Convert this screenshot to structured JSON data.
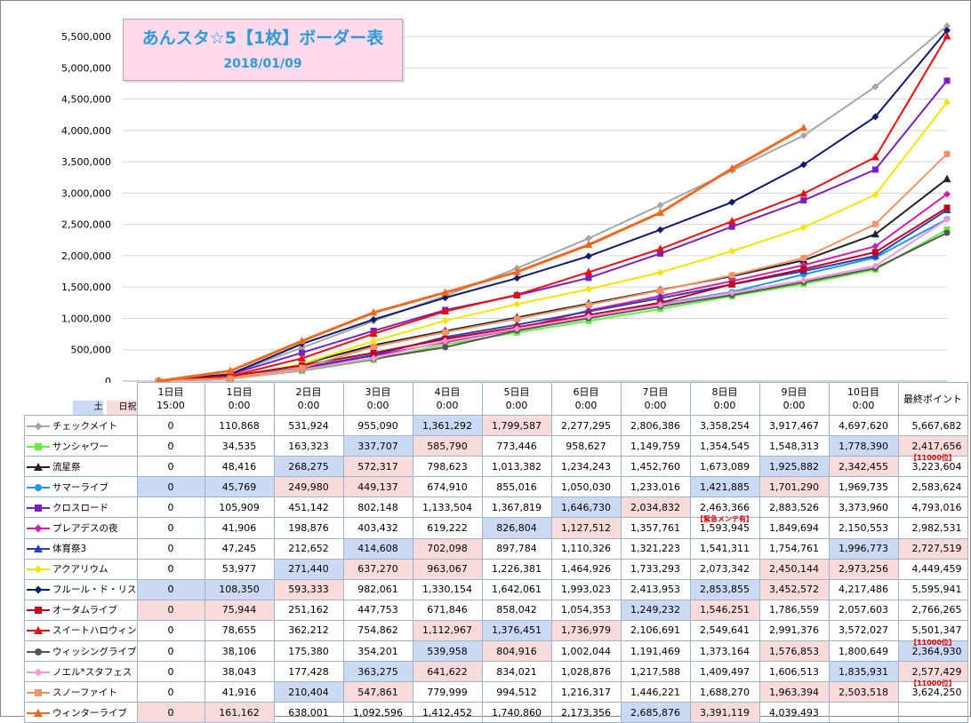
{
  "title": "あんスタ☆5【1枚】ボーダー表",
  "date": "2018/01/09",
  "legend_weekend": {
    "sat": "土",
    "holiday": "日祝",
    "sat_color": "#ccd9f5",
    "holiday_color": "#fadbdb"
  },
  "columns": [
    {
      "l1": "1日目",
      "l2": "15:00"
    },
    {
      "l1": "1日目",
      "l2": "0:00"
    },
    {
      "l1": "2日目",
      "l2": "0:00"
    },
    {
      "l1": "3日目",
      "l2": "0:00"
    },
    {
      "l1": "4日目",
      "l2": "0:00"
    },
    {
      "l1": "5日目",
      "l2": "0:00"
    },
    {
      "l1": "6日目",
      "l2": "0:00"
    },
    {
      "l1": "7日目",
      "l2": "0:00"
    },
    {
      "l1": "8日目",
      "l2": "0:00"
    },
    {
      "l1": "9日目",
      "l2": "0:00"
    },
    {
      "l1": "10日目",
      "l2": "0:00"
    },
    {
      "l1": "最終ポイント",
      "l2": ""
    }
  ],
  "notes": {
    "r1c11": "【11000位】",
    "r4c8": "【緊急メンテ有】",
    "r10c11": "【11000位】",
    "r12c11": "【11000位】"
  },
  "rows": [
    {
      "name": "チェックメイト",
      "color": "#a6a6a6",
      "marker": "diamond",
      "vals": [
        0,
        110868,
        531924,
        955090,
        1361292,
        1799587,
        2277295,
        2806386,
        3358254,
        3917467,
        4697620,
        5667682
      ],
      "cells": [
        "0",
        "110,868",
        "531,924",
        "955,090",
        "1,361,292",
        "1,799,587",
        "2,277,295",
        "2,806,386",
        "3,358,254",
        "3,917,467",
        "4,697,620",
        "5,667,682"
      ],
      "hl": [
        "",
        "",
        "",
        "",
        "b",
        "p",
        "",
        "",
        "",
        "",
        "",
        ""
      ]
    },
    {
      "name": "サンシャワー",
      "color": "#66ee44",
      "marker": "square",
      "vals": [
        0,
        34535,
        163323,
        337707,
        585790,
        773446,
        958627,
        1149759,
        1354545,
        1548313,
        1778390,
        2417656
      ],
      "cells": [
        "0",
        "34,535",
        "163,323",
        "337,707",
        "585,790",
        "773,446",
        "958,627",
        "1,149,759",
        "1,354,545",
        "1,548,313",
        "1,778,390",
        "2,417,656"
      ],
      "hl": [
        "",
        "",
        "",
        "b",
        "p",
        "",
        "",
        "",
        "",
        "",
        "b",
        "p"
      ]
    },
    {
      "name": "流星祭",
      "color": "#222222",
      "marker": "triangle",
      "vals": [
        0,
        48416,
        268275,
        572317,
        798623,
        1013382,
        1234243,
        1452760,
        1673089,
        1925882,
        2342455,
        3223604
      ],
      "cells": [
        "0",
        "48,416",
        "268,275",
        "572,317",
        "798,623",
        "1,013,382",
        "1,234,243",
        "1,452,760",
        "1,673,089",
        "1,925,882",
        "2,342,455",
        "3,223,604"
      ],
      "hl": [
        "",
        "",
        "b",
        "p",
        "",
        "",
        "",
        "",
        "",
        "b",
        "p",
        ""
      ]
    },
    {
      "name": "サマーライブ",
      "color": "#1f9ae0",
      "marker": "circle",
      "vals": [
        0,
        45769,
        249980,
        449137,
        674910,
        855016,
        1050030,
        1233016,
        1421885,
        1701290,
        1969735,
        2583624
      ],
      "cells": [
        "0",
        "45,769",
        "249,980",
        "449,137",
        "674,910",
        "855,016",
        "1,050,030",
        "1,233,016",
        "1,421,885",
        "1,701,290",
        "1,969,735",
        "2,583,624"
      ],
      "hl": [
        "b",
        "b",
        "p",
        "p",
        "",
        "",
        "",
        "",
        "b",
        "p",
        "",
        ""
      ]
    },
    {
      "name": "クロスロード",
      "color": "#7a1fc2",
      "marker": "square",
      "vals": [
        0,
        105909,
        451142,
        802148,
        1133504,
        1367819,
        1646730,
        2034832,
        2463366,
        2883526,
        3373960,
        4793016
      ],
      "cells": [
        "0",
        "105,909",
        "451,142",
        "802,148",
        "1,133,504",
        "1,367,819",
        "1,646,730",
        "2,034,832",
        "2,463,366",
        "2,883,526",
        "3,373,960",
        "4,793,016"
      ],
      "hl": [
        "",
        "",
        "",
        "",
        "",
        "",
        "b",
        "p",
        "",
        "",
        "",
        ""
      ]
    },
    {
      "name": "プレアデスの夜",
      "color": "#d61fa8",
      "marker": "diamond",
      "vals": [
        0,
        41906,
        198876,
        403432,
        619222,
        826804,
        1127512,
        1357761,
        1593945,
        1849694,
        2150553,
        2982531
      ],
      "cells": [
        "0",
        "41,906",
        "198,876",
        "403,432",
        "619,222",
        "826,804",
        "1,127,512",
        "1,357,761",
        "1,593,945",
        "1,849,694",
        "2,150,553",
        "2,982,531"
      ],
      "hl": [
        "",
        "",
        "",
        "",
        "",
        "b",
        "p",
        "",
        "",
        "",
        "",
        ""
      ]
    },
    {
      "name": "体育祭3",
      "color": "#2a3fb8",
      "marker": "triangle",
      "vals": [
        0,
        47245,
        212652,
        414608,
        702098,
        897784,
        1110326,
        1321223,
        1541311,
        1754761,
        1996773,
        2727519
      ],
      "cells": [
        "0",
        "47,245",
        "212,652",
        "414,608",
        "702,098",
        "897,784",
        "1,110,326",
        "1,321,223",
        "1,541,311",
        "1,754,761",
        "1,996,773",
        "2,727,519"
      ],
      "hl": [
        "",
        "",
        "",
        "b",
        "p",
        "",
        "",
        "",
        "",
        "",
        "b",
        "p"
      ]
    },
    {
      "name": "アクアリウム",
      "color": "#f2e600",
      "marker": "diamond",
      "vals": [
        0,
        53977,
        271440,
        637270,
        963067,
        1226381,
        1464926,
        1733293,
        2073342,
        2450144,
        2973256,
        4449459
      ],
      "cells": [
        "0",
        "53,977",
        "271,440",
        "637,270",
        "963,067",
        "1,226,381",
        "1,464,926",
        "1,733,293",
        "2,073,342",
        "2,450,144",
        "2,973,256",
        "4,449,459"
      ],
      "hl": [
        "",
        "",
        "b",
        "p",
        "p",
        "",
        "",
        "",
        "",
        "p",
        "p",
        ""
      ]
    },
    {
      "name": "フルール・ド・リス",
      "color": "#0d1a6e",
      "marker": "diamond",
      "vals": [
        0,
        108350,
        593333,
        982061,
        1330154,
        1642061,
        1993023,
        2413953,
        2853855,
        3452572,
        4217486,
        5595941
      ],
      "cells": [
        "0",
        "108,350",
        "593,333",
        "982,061",
        "1,330,154",
        "1,642,061",
        "1,993,023",
        "2,413,953",
        "2,853,855",
        "3,452,572",
        "4,217,486",
        "5,595,941"
      ],
      "hl": [
        "b",
        "b",
        "p",
        "",
        "",
        "",
        "",
        "",
        "b",
        "p",
        "",
        ""
      ]
    },
    {
      "name": "オータムライブ",
      "color": "#c0001c",
      "marker": "square",
      "vals": [
        0,
        75944,
        251162,
        447753,
        671846,
        858042,
        1054353,
        1249232,
        1546251,
        1786559,
        2057603,
        2766265
      ],
      "cells": [
        "0",
        "75,944",
        "251,162",
        "447,753",
        "671,846",
        "858,042",
        "1,054,353",
        "1,249,232",
        "1,546,251",
        "1,786,559",
        "2,057,603",
        "2,766,265"
      ],
      "hl": [
        "p",
        "p",
        "",
        "",
        "",
        "",
        "",
        "b",
        "p",
        "",
        "",
        ""
      ]
    },
    {
      "name": "スイートハロウィン",
      "color": "#ee0d0d",
      "marker": "triangle",
      "vals": [
        0,
        78655,
        362212,
        754862,
        1112967,
        1376451,
        1736979,
        2106691,
        2549641,
        2991376,
        3572027,
        5501347
      ],
      "cells": [
        "0",
        "78,655",
        "362,212",
        "754,862",
        "1,112,967",
        "1,376,451",
        "1,736,979",
        "2,106,691",
        "2,549,641",
        "2,991,376",
        "3,572,027",
        "5,501,347"
      ],
      "hl": [
        "",
        "",
        "",
        "",
        "p",
        "b",
        "p",
        "",
        "",
        "",
        "",
        ""
      ]
    },
    {
      "name": "ウィッシングライブ",
      "color": "#555555",
      "marker": "circle",
      "vals": [
        0,
        38106,
        175380,
        354201,
        539958,
        804916,
        1002044,
        1191469,
        1373164,
        1576853,
        1800649,
        2364930
      ],
      "cells": [
        "0",
        "38,106",
        "175,380",
        "354,201",
        "539,958",
        "804,916",
        "1,002,044",
        "1,191,469",
        "1,373,164",
        "1,576,853",
        "1,800,649",
        "2,364,930"
      ],
      "hl": [
        "",
        "",
        "",
        "",
        "b",
        "p",
        "",
        "",
        "",
        "p",
        "",
        "b"
      ]
    },
    {
      "name": "ノエル*スタフェス",
      "color": "#f098d8",
      "marker": "diamond",
      "vals": [
        0,
        38043,
        177428,
        363275,
        641622,
        834021,
        1028876,
        1217588,
        1409497,
        1606513,
        1835931,
        2577429
      ],
      "cells": [
        "0",
        "38,043",
        "177,428",
        "363,275",
        "641,622",
        "834,021",
        "1,028,876",
        "1,217,588",
        "1,409,497",
        "1,606,513",
        "1,835,931",
        "2,577,429"
      ],
      "hl": [
        "",
        "",
        "",
        "b",
        "p",
        "",
        "",
        "",
        "",
        "",
        "b",
        "p"
      ]
    },
    {
      "name": "スノーファイト",
      "color": "#f4926a",
      "marker": "square",
      "vals": [
        0,
        41916,
        210404,
        547861,
        779999,
        994512,
        1216317,
        1446221,
        1688270,
        1963394,
        2503518,
        3624250
      ],
      "cells": [
        "0",
        "41,916",
        "210,404",
        "547,861",
        "779,999",
        "994,512",
        "1,216,317",
        "1,446,221",
        "1,688,270",
        "1,963,394",
        "2,503,518",
        "3,624,250"
      ],
      "hl": [
        "",
        "",
        "b",
        "p",
        "",
        "",
        "",
        "",
        "",
        "p",
        "p",
        ""
      ]
    },
    {
      "name": "ウィンターライブ",
      "color": "#ee6a22",
      "marker": "triangle",
      "vals": [
        0,
        161162,
        638001,
        1092596,
        1412452,
        1740860,
        2173356,
        2685876,
        3391119,
        4039493,
        null,
        null
      ],
      "cells": [
        "0",
        "161,162",
        "638,001",
        "1,092,596",
        "1,412,452",
        "1,740,860",
        "2,173,356",
        "2,685,876",
        "3,391,119",
        "4,039,493",
        "",
        ""
      ],
      "hl": [
        "p",
        "p",
        "",
        "",
        "",
        "",
        "",
        "b",
        "p",
        "",
        "",
        ""
      ]
    }
  ],
  "chart_data": {
    "type": "line",
    "title": "あんスタ☆5【1枚】ボーダー表",
    "subtitle": "2018/01/09",
    "categories": [
      "1日目 15:00",
      "1日目 0:00",
      "2日目 0:00",
      "3日目 0:00",
      "4日目 0:00",
      "5日目 0:00",
      "6日目 0:00",
      "7日目 0:00",
      "8日目 0:00",
      "9日目 0:00",
      "10日目 0:00",
      "最終ポイント"
    ],
    "ylim": [
      0,
      5500000
    ],
    "yticks": [
      "0",
      "500,000",
      "1,000,000",
      "1,500,000",
      "2,000,000",
      "2,500,000",
      "3,000,000",
      "3,500,000",
      "4,000,000",
      "4,500,000",
      "5,000,000",
      "5,500,000"
    ],
    "grid": true,
    "series_ref": "rows"
  }
}
